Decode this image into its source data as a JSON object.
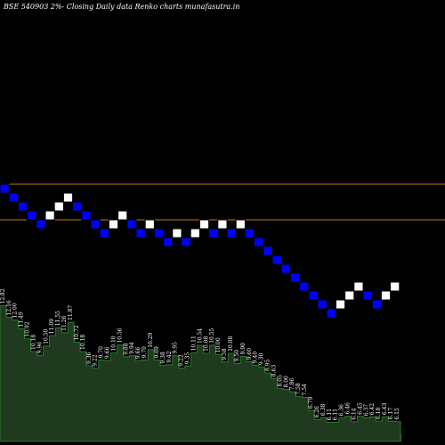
{
  "title": "BSE 540903 2%-  Closing Daily data  Renko  charts munafasutra.in",
  "colors": {
    "background": "#000000",
    "up_brick": "#ffffff",
    "down_brick": "#0000ff",
    "brick_border": "#000000",
    "resistance_line": "#c87800",
    "volume_fill": "#1f3a1f",
    "volume_edge": "#2e8b2e",
    "shadow": "#2a2a2a",
    "text": "#ffffff"
  },
  "chart_data": {
    "type": "renko",
    "horizontal_lines": [
      11.8,
      11.0
    ],
    "bricks": [
      {
        "dir": "down",
        "top": 11.8
      },
      {
        "dir": "down",
        "top": 11.6
      },
      {
        "dir": "down",
        "top": 11.4
      },
      {
        "dir": "down",
        "top": 11.2
      },
      {
        "dir": "down",
        "top": 11.0
      },
      {
        "dir": "up",
        "top": 11.2
      },
      {
        "dir": "up",
        "top": 11.4
      },
      {
        "dir": "up",
        "top": 11.6
      },
      {
        "dir": "down",
        "top": 11.4
      },
      {
        "dir": "down",
        "top": 11.2
      },
      {
        "dir": "down",
        "top": 11.0
      },
      {
        "dir": "down",
        "top": 10.8
      },
      {
        "dir": "up",
        "top": 11.0
      },
      {
        "dir": "up",
        "top": 11.2
      },
      {
        "dir": "down",
        "top": 11.0
      },
      {
        "dir": "down",
        "top": 10.8
      },
      {
        "dir": "up",
        "top": 11.0
      },
      {
        "dir": "down",
        "top": 10.8
      },
      {
        "dir": "down",
        "top": 10.6
      },
      {
        "dir": "up",
        "top": 10.8
      },
      {
        "dir": "down",
        "top": 10.6
      },
      {
        "dir": "up",
        "top": 10.8
      },
      {
        "dir": "up",
        "top": 11.0
      },
      {
        "dir": "down",
        "top": 10.8
      },
      {
        "dir": "up",
        "top": 11.0
      },
      {
        "dir": "down",
        "top": 10.8
      },
      {
        "dir": "up",
        "top": 11.0
      },
      {
        "dir": "down",
        "top": 10.8
      },
      {
        "dir": "down",
        "top": 10.6
      },
      {
        "dir": "down",
        "top": 10.4
      },
      {
        "dir": "down",
        "top": 10.2
      },
      {
        "dir": "down",
        "top": 10.0
      },
      {
        "dir": "down",
        "top": 9.8
      },
      {
        "dir": "down",
        "top": 9.6
      },
      {
        "dir": "down",
        "top": 9.4
      },
      {
        "dir": "down",
        "top": 9.2
      },
      {
        "dir": "down",
        "top": 9.0
      },
      {
        "dir": "up",
        "top": 9.2
      },
      {
        "dir": "up",
        "top": 9.4
      },
      {
        "dir": "up",
        "top": 9.6
      },
      {
        "dir": "down",
        "top": 9.4
      },
      {
        "dir": "down",
        "top": 9.2
      },
      {
        "dir": "up",
        "top": 9.4
      },
      {
        "dir": "up",
        "top": 9.6
      }
    ],
    "y_range": [
      6.0,
      12.0
    ],
    "volume_values": [
      12.82,
      12.16,
      12.0,
      11.49,
      10.92,
      10.18,
      9.96,
      10.5,
      11.09,
      11.55,
      11.26,
      11.87,
      10.72,
      10.18,
      9.36,
      9.22,
      9.7,
      9.66,
      10.1,
      10.56,
      9.88,
      9.94,
      9.66,
      9.7,
      10.29,
      9.69,
      9.38,
      9.42,
      9.95,
      9.22,
      9.35,
      10.11,
      10.54,
      10.08,
      10.55,
      10.0,
      9.58,
      10.08,
      9.5,
      9.9,
      9.6,
      9.4,
      9.3,
      8.95,
      8.63,
      8.05,
      8.0,
      7.86,
      7.58,
      7.54,
      6.79,
      6.26,
      6.38,
      6.11,
      6.11,
      6.36,
      6.46,
      6.14,
      6.45,
      6.37,
      6.42,
      6.18,
      6.43,
      6.17,
      6.15
    ],
    "volume_range": [
      5.0,
      13.0
    ]
  }
}
